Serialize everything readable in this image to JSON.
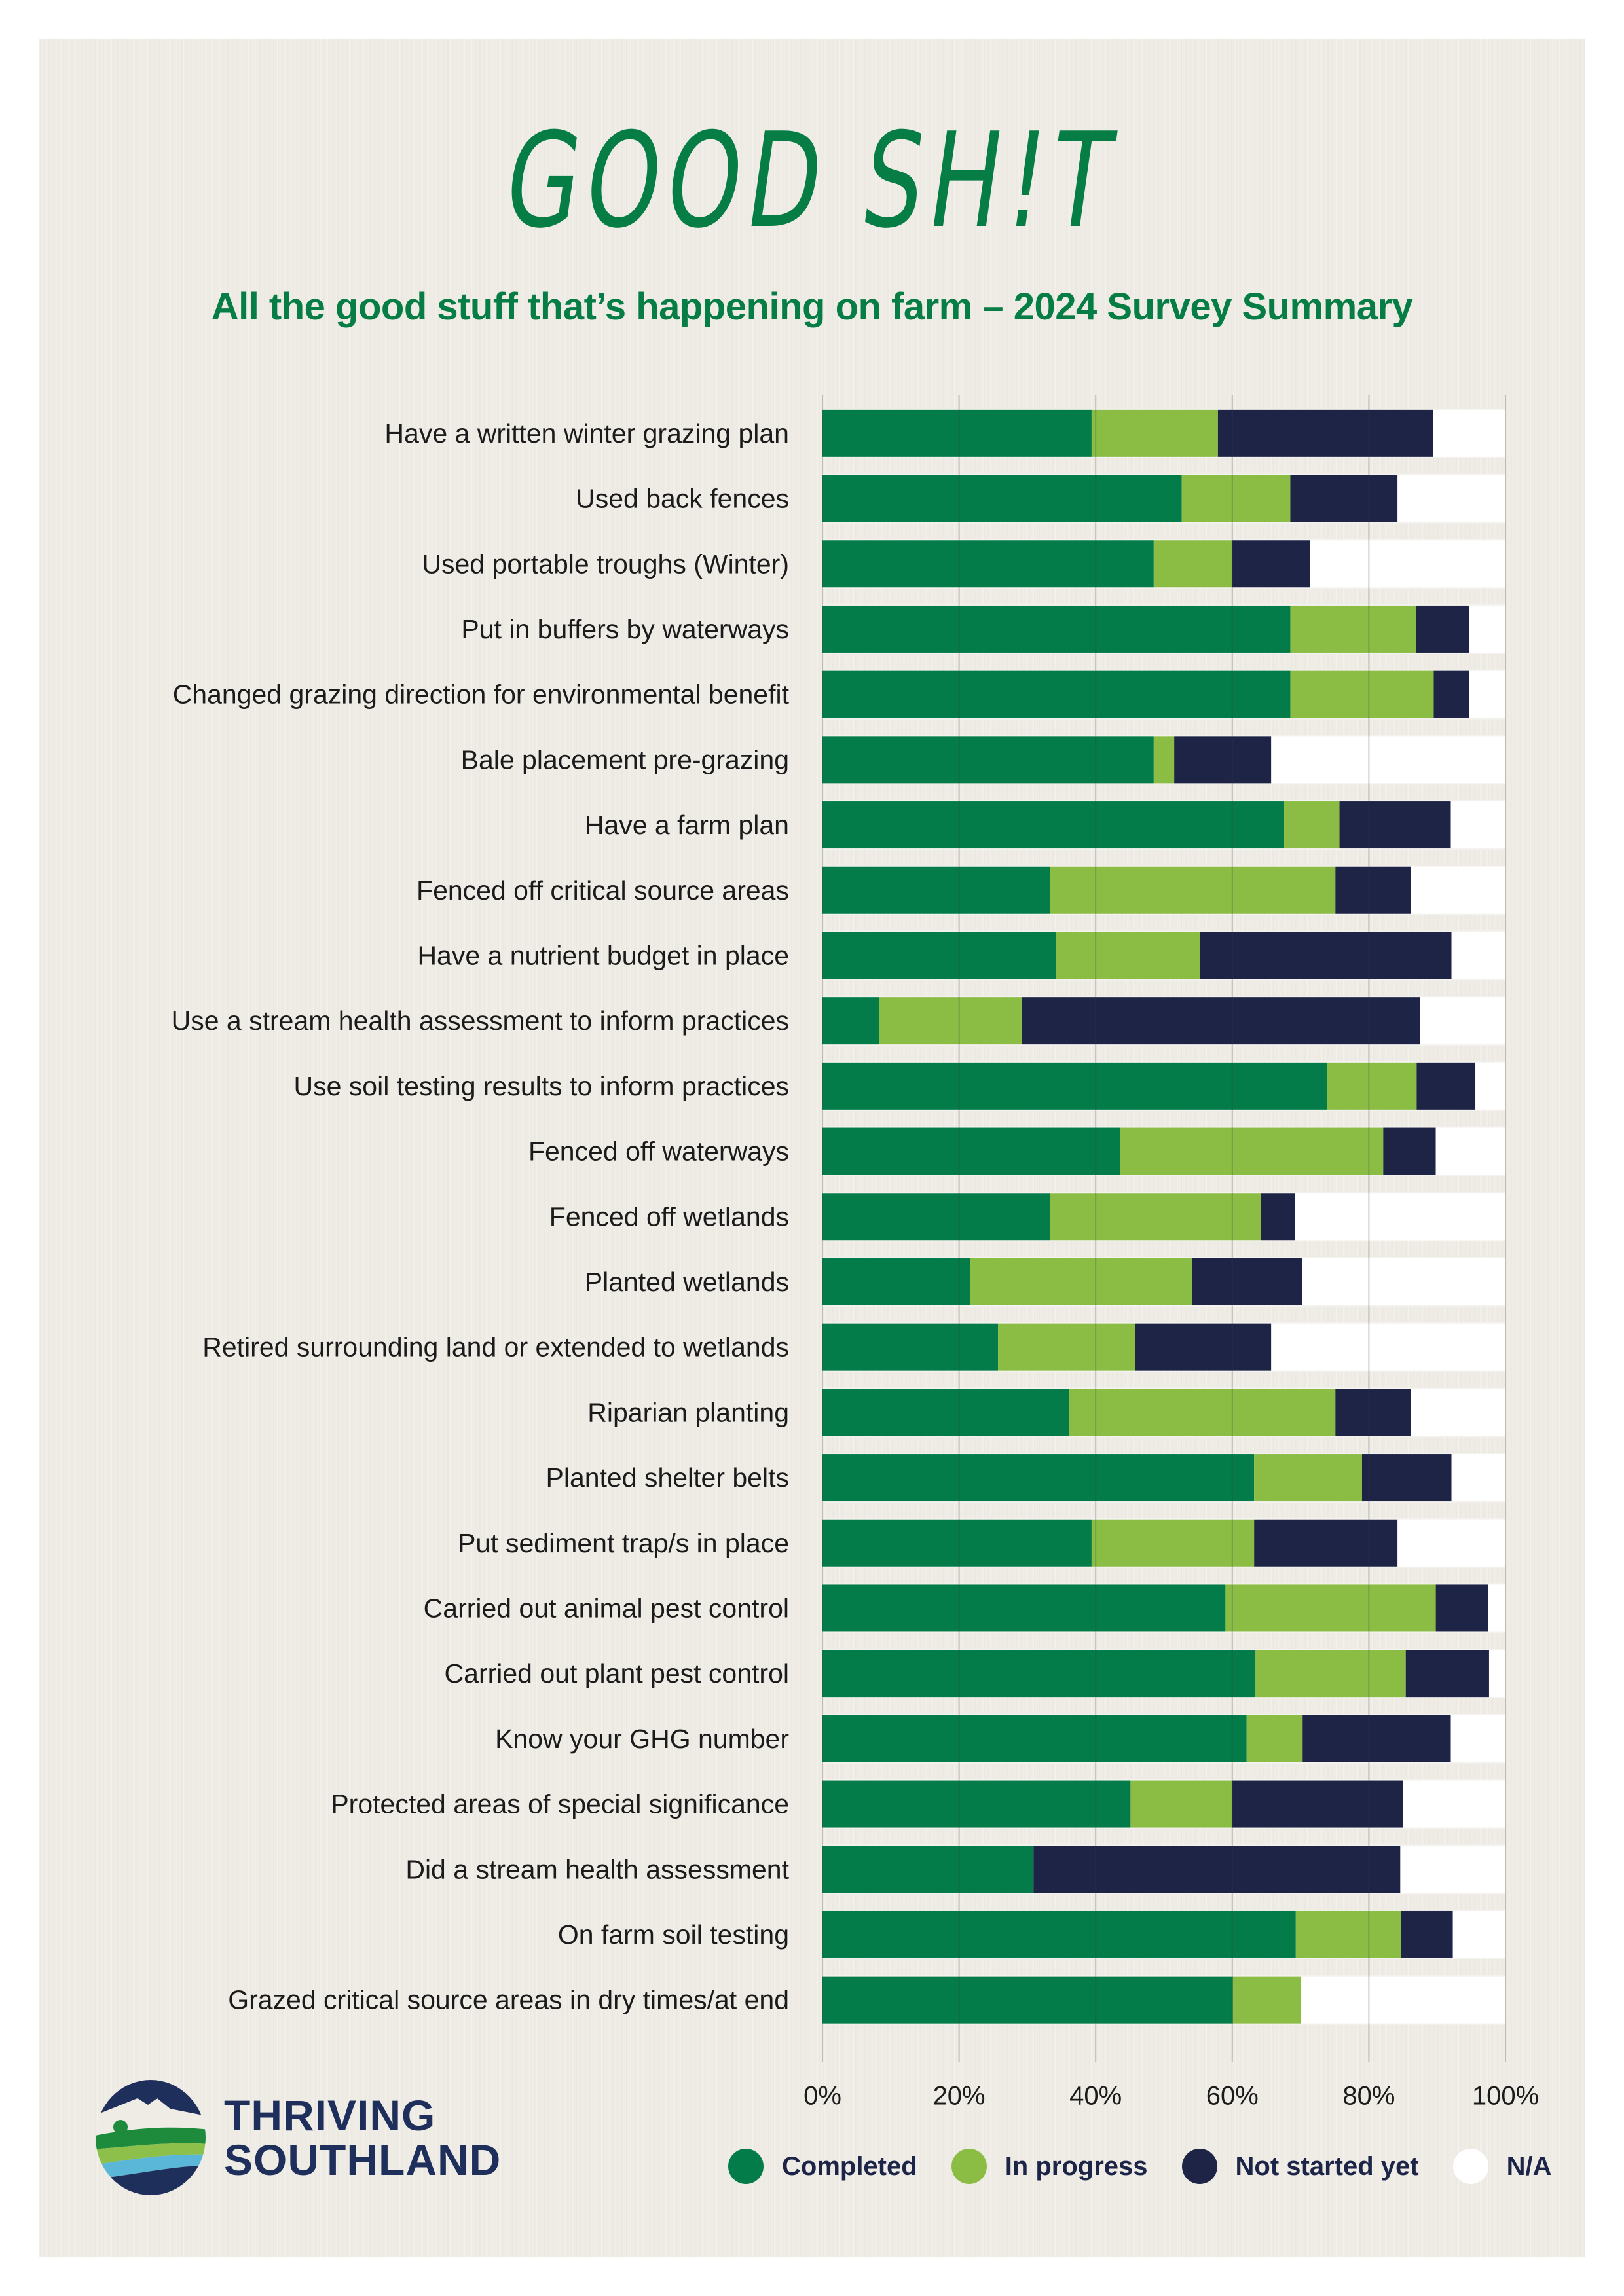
{
  "header": {
    "headline": "GOOD SH!T",
    "subtitle": "All the good stuff that’s happening on farm – 2024 Survey Summary"
  },
  "logo": {
    "line1": "THRIVING",
    "line2": "SOUTHLAND",
    "colors": {
      "navy": "#1f2f5c",
      "green": "#1d8a3c",
      "lightgreen": "#8cc04a",
      "blue": "#5ab7d8"
    }
  },
  "chart_data": {
    "type": "bar",
    "orientation": "horizontal",
    "stacked": true,
    "title": "All the good stuff that’s happening on farm – 2024 Survey Summary",
    "xlabel": "",
    "ylabel": "",
    "xlim": [
      0,
      100
    ],
    "x_ticks": [
      "0%",
      "20%",
      "40%",
      "60%",
      "80%",
      "100%"
    ],
    "grid": "vertical",
    "legend_position": "bottom-right",
    "categories": [
      "Have a written winter grazing plan",
      "Used back fences",
      "Used portable troughs (Winter)",
      "Put in buffers by waterways",
      "Changed grazing direction for environmental benefit",
      "Bale placement pre-grazing",
      "Have a farm plan",
      "Fenced off critical source areas",
      "Have a nutrient budget in place",
      "Use a stream health assessment to inform practices",
      "Use soil testing results to inform practices",
      "Fenced off waterways",
      "Fenced off wetlands",
      "Planted wetlands",
      "Retired surrounding land or extended to wetlands",
      "Riparian planting",
      "Planted shelter belts",
      "Put sediment trap/s in place",
      "Carried out animal pest control",
      "Carried out plant pest control",
      "Know your GHG number",
      "Protected areas of special significance",
      "Did a stream health assessment",
      "On farm soil testing",
      "Grazed critical source areas in dry times/at end"
    ],
    "series": [
      {
        "name": "Completed",
        "color": "#047c4a",
        "values": [
          39.4,
          52.6,
          48.5,
          68.5,
          68.5,
          48.5,
          67.6,
          33.3,
          34.2,
          8.3,
          73.9,
          43.6,
          33.3,
          21.6,
          25.7,
          36.1,
          63.2,
          39.4,
          59.0,
          63.4,
          62.1,
          45.1,
          30.9,
          69.3,
          60.1
        ]
      },
      {
        "name": "In progress",
        "color": "#8bbd44",
        "values": [
          18.5,
          15.9,
          11.5,
          18.4,
          21.0,
          3.0,
          8.1,
          41.8,
          21.1,
          20.9,
          13.1,
          38.5,
          30.9,
          32.5,
          20.1,
          39.0,
          15.8,
          23.8,
          30.8,
          22.0,
          8.2,
          14.9,
          0.0,
          15.4,
          9.9
        ]
      },
      {
        "name": "Not started yet",
        "color": "#1d2446",
        "values": [
          31.5,
          15.7,
          11.4,
          7.8,
          5.2,
          14.2,
          16.3,
          11.0,
          36.8,
          58.3,
          8.6,
          7.7,
          5.0,
          16.1,
          19.9,
          11.0,
          13.1,
          21.0,
          7.7,
          12.2,
          21.7,
          25.0,
          53.7,
          7.6,
          0.0
        ]
      },
      {
        "name": "N/A",
        "color": "#ffffff",
        "values": [
          10.6,
          15.8,
          28.6,
          5.3,
          5.3,
          34.3,
          8.0,
          13.9,
          7.9,
          12.5,
          4.4,
          10.2,
          30.8,
          29.8,
          34.3,
          13.9,
          7.9,
          15.8,
          2.5,
          2.4,
          8.0,
          15.0,
          15.4,
          7.7,
          30.0
        ]
      }
    ]
  }
}
